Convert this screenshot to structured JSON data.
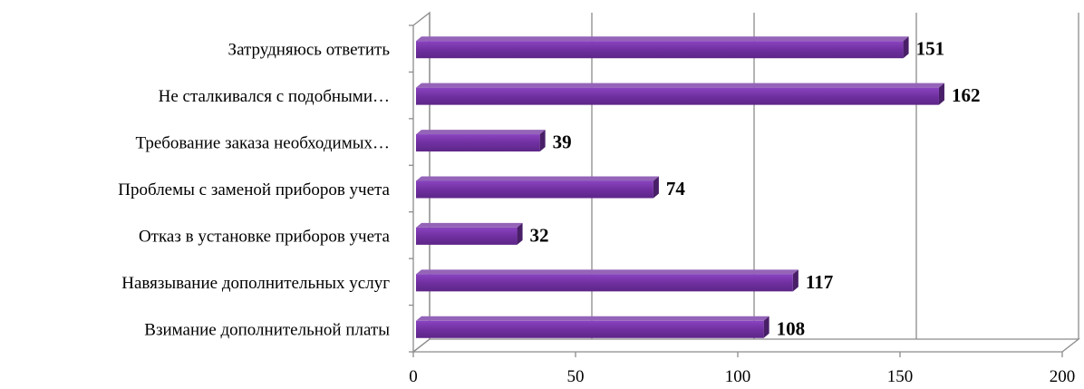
{
  "chart_data": {
    "type": "bar",
    "orientation": "horizontal",
    "style": "3d",
    "categories": [
      "Затрудняюсь ответить",
      "Не сталкивался с подобными…",
      "Требование заказа необходимых…",
      "Проблемы с заменой приборов учета",
      "Отказ в установке приборов учета",
      "Навязывание дополнительных услуг",
      "Взимание дополнительной платы"
    ],
    "values": [
      151,
      162,
      39,
      74,
      32,
      117,
      108
    ],
    "xlim": [
      0,
      200
    ],
    "xticks": [
      0,
      50,
      100,
      150,
      200
    ],
    "grid": "vertical",
    "legend": "none",
    "bar_color": "#7030a0",
    "data_labels": true
  }
}
